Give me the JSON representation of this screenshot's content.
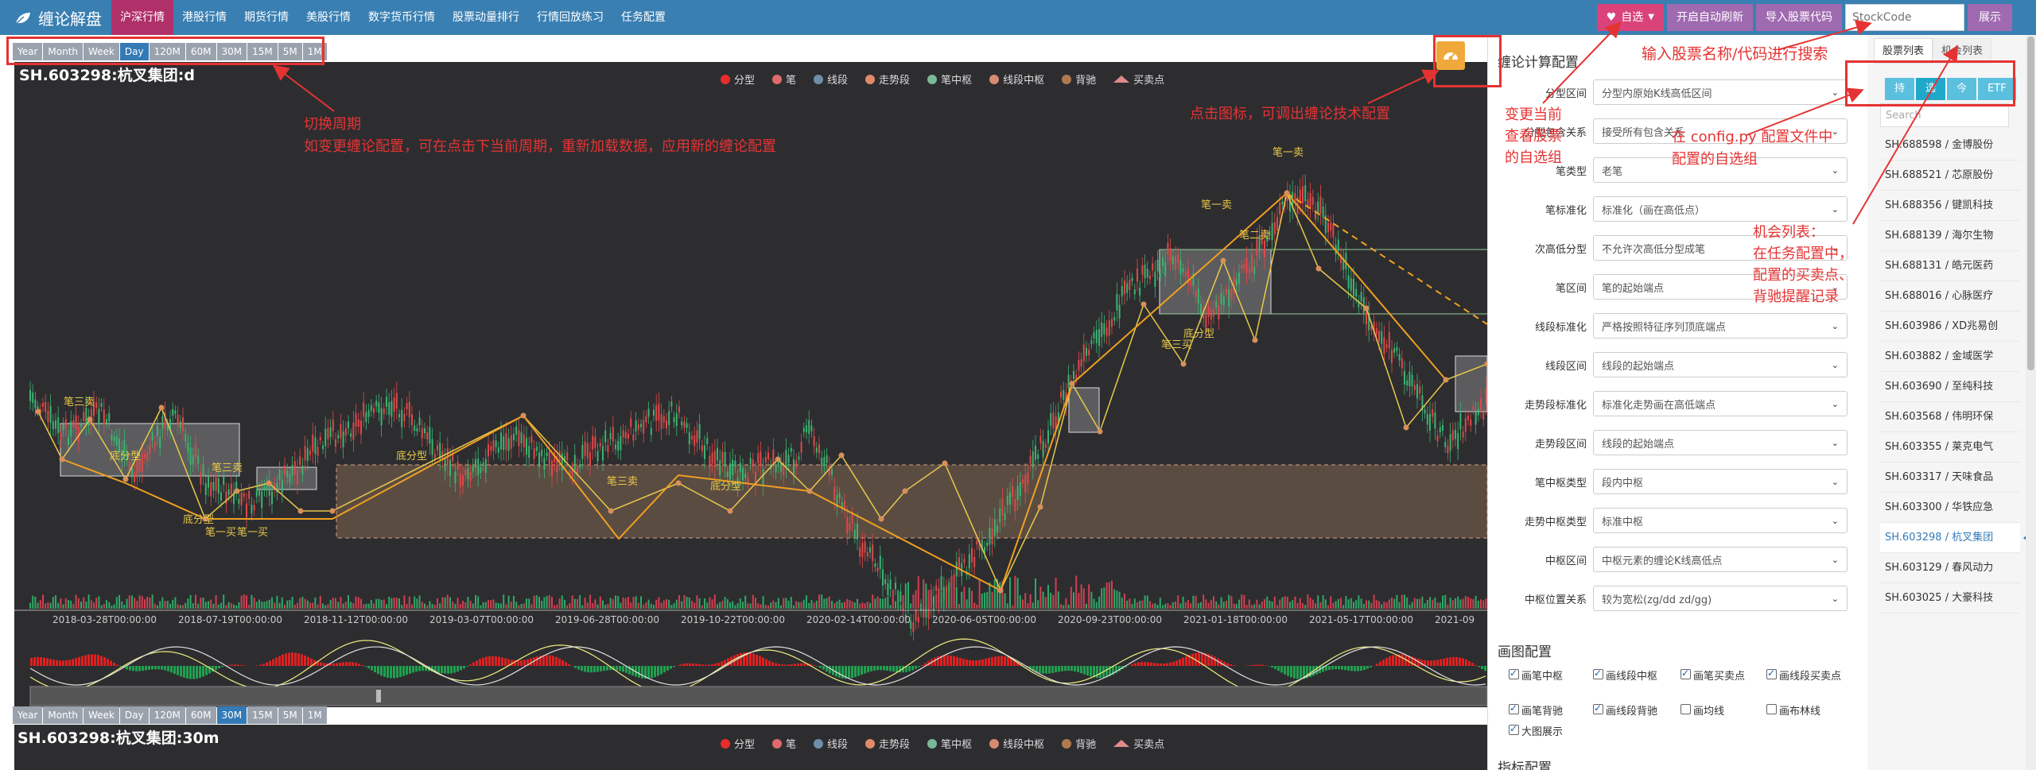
{
  "brand": {
    "title": "缠论解盘",
    "icon": "leaf-icon"
  },
  "nav": [
    {
      "label": "沪深行情",
      "active": true
    },
    {
      "label": "港股行情"
    },
    {
      "label": "期货行情"
    },
    {
      "label": "美股行情"
    },
    {
      "label": "数字货币行情"
    },
    {
      "label": "股票动量排行"
    },
    {
      "label": "行情回放练习"
    },
    {
      "label": "任务配置"
    }
  ],
  "header_right": {
    "favorites": "自选",
    "auto_refresh": "开启自动刷新",
    "import": "导入股票代码",
    "stock_placeholder": "StockCode",
    "show": "展示"
  },
  "periods": [
    "Year",
    "Month",
    "Week",
    "Day",
    "120M",
    "60M",
    "30M",
    "15M",
    "5M",
    "1M"
  ],
  "chart1": {
    "title": "SH.603298:杭叉集团:d",
    "selected_period": "Day",
    "dates": [
      "2018-03-28T00:00:00",
      "2018-07-19T00:00:00",
      "2018-11-12T00:00:00",
      "2019-03-07T00:00:00",
      "2019-06-28T00:00:00",
      "2019-10-22T00:00:00",
      "2020-02-14T00:00:00",
      "2020-06-05T00:00:00",
      "2020-09-23T00:00:00",
      "2021-01-18T00:00:00",
      "2021-05-17T00:00:00",
      "2021-09"
    ],
    "labels": {
      "bi_sell1": "笔一卖",
      "bi_sell2": "笔二卖",
      "bi_sell3": "笔三卖",
      "bi_buy1": "笔一买",
      "bi_buy3": "笔三买",
      "fen_xing": "底分型"
    }
  },
  "chart2": {
    "title": "SH.603298:杭叉集团:30m",
    "selected_period": "30M"
  },
  "legend": [
    {
      "label": "分型",
      "color": "#e82c2c"
    },
    {
      "label": "笔",
      "color": "#e06a6a"
    },
    {
      "label": "线段",
      "color": "#6f8fa8"
    },
    {
      "label": "走势段",
      "color": "#e08a6a"
    },
    {
      "label": "笔中枢",
      "color": "#7ab89a"
    },
    {
      "label": "线段中枢",
      "color": "#d88a70"
    },
    {
      "label": "背驰",
      "color": "#b07a50"
    },
    {
      "label": "买卖点",
      "color": "#e08a8a"
    }
  ],
  "config": {
    "title": "缠论计算配置",
    "rows": [
      {
        "label": "分型区间",
        "value": "分型内原始K线高低区间"
      },
      {
        "label": "分型包含关系",
        "value": "接受所有包含关系"
      },
      {
        "label": "笔类型",
        "value": "老笔"
      },
      {
        "label": "笔标准化",
        "value": "标准化（画在高低点）"
      },
      {
        "label": "次高低分型",
        "value": "不允许次高低分型成笔"
      },
      {
        "label": "笔区间",
        "value": "笔的起始端点"
      },
      {
        "label": "线段标准化",
        "value": "严格按照特征序列顶底端点"
      },
      {
        "label": "线段区间",
        "value": "线段的起始端点"
      },
      {
        "label": "走势段标准化",
        "value": "标准化走势画在高低端点"
      },
      {
        "label": "走势段区间",
        "value": "线段的起始端点"
      },
      {
        "label": "笔中枢类型",
        "value": "段内中枢"
      },
      {
        "label": "走势中枢类型",
        "value": "标准中枢"
      },
      {
        "label": "中枢区间",
        "value": "中枢元素的缠论K线高低点"
      },
      {
        "label": "中枢位置关系",
        "value": "较为宽松(zg/dd zd/gg)"
      }
    ],
    "draw_title": "画图配置",
    "checks": [
      {
        "label": "画笔中枢",
        "on": true
      },
      {
        "label": "画线段中枢",
        "on": true
      },
      {
        "label": "画笔买卖点",
        "on": true
      },
      {
        "label": "画线段买卖点",
        "on": true
      },
      {
        "label": "画笔背驰",
        "on": true
      },
      {
        "label": "画线段背驰",
        "on": true
      },
      {
        "label": "画均线",
        "on": false
      },
      {
        "label": "画布林线",
        "on": false
      },
      {
        "label": "大图展示",
        "on": true
      }
    ],
    "indicator_title": "指标配置"
  },
  "right": {
    "tabs": [
      "股票列表",
      "机会列表"
    ],
    "filters": [
      "持",
      "选",
      "今",
      "ETF"
    ],
    "search_placeholder": "Search",
    "stocks": [
      "SH.688598 / 金博股份",
      "SH.688521 / 芯原股份",
      "SH.688356 / 键凯科技",
      "SH.688139 / 海尔生物",
      "SH.688131 / 皓元医药",
      "SH.688016 / 心脉医疗",
      "SH.603986 / XD兆易创",
      "SH.603882 / 金域医学",
      "SH.603690 / 至纯科技",
      "SH.603568 / 伟明环保",
      "SH.603355 / 莱克电气",
      "SH.603317 / 天味食品",
      "SH.603300 / 华铁应急",
      "SH.603298 / 杭叉集团",
      "SH.603129 / 春风动力",
      "SH.603025 / 大豪科技"
    ],
    "active_stock": "SH.603298 / 杭叉集团"
  },
  "annotations": {
    "period_switch": "切换周期",
    "period_note": "如变更缠论配置，可在点击下当前周期，重新加载数据，应用新的缠论配置",
    "gear_note": "点击图标，可调出缠论技术配置",
    "fav_note_1": "变更当前",
    "fav_note_2": "查看股票",
    "fav_note_3": "的自选组",
    "search_note": "输入股票名称/代码进行搜索",
    "config_note_1": "在 config.py 配置文件中",
    "config_note_2": "配置的自选组",
    "chance_note_1": "机会列表：",
    "chance_note_2": "在任务配置中，",
    "chance_note_3": "配置的买卖点、",
    "chance_note_4": "背驰提醒记录"
  },
  "colors": {
    "nav_bg": "#3a7fb2",
    "nav_active": "#b0306a",
    "accent": "#a06ab0",
    "fav": "#d9437a",
    "chart_bg": "#2d2d30",
    "annotation": "#e53333"
  }
}
